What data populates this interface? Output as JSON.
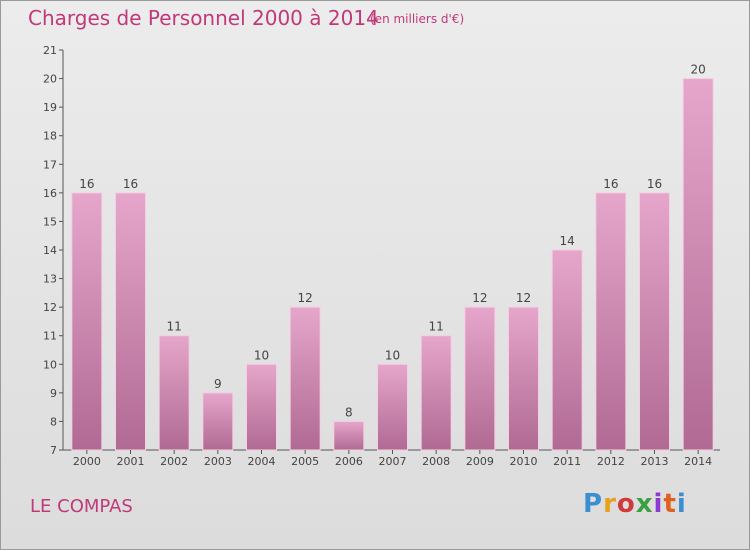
{
  "title": "Charges de Personnel 2000 à 2014",
  "subtitle": "(en milliers d'€)",
  "commune": "LE COMPAS",
  "logo": {
    "text": "Proxiti",
    "colors": [
      "#3a8fd0",
      "#e8a020",
      "#d03a3a",
      "#3aa040",
      "#8a3ad0",
      "#e06020",
      "#3a8fd0"
    ]
  },
  "colors": {
    "accent": "#c0397a",
    "bar_top": "#e6a6cb",
    "bar_bottom": "#b06a93"
  },
  "chart_data": {
    "type": "bar",
    "categories": [
      "2000",
      "2001",
      "2002",
      "2003",
      "2004",
      "2005",
      "2006",
      "2007",
      "2008",
      "2009",
      "2010",
      "2011",
      "2012",
      "2013",
      "2014"
    ],
    "values": [
      16,
      16,
      11,
      9,
      10,
      12,
      8,
      10,
      11,
      12,
      12,
      14,
      16,
      16,
      20
    ],
    "ylim": [
      7,
      21
    ],
    "yticks": [
      7,
      8,
      9,
      10,
      11,
      12,
      13,
      14,
      15,
      16,
      17,
      18,
      19,
      20,
      21
    ],
    "grid": false
  }
}
